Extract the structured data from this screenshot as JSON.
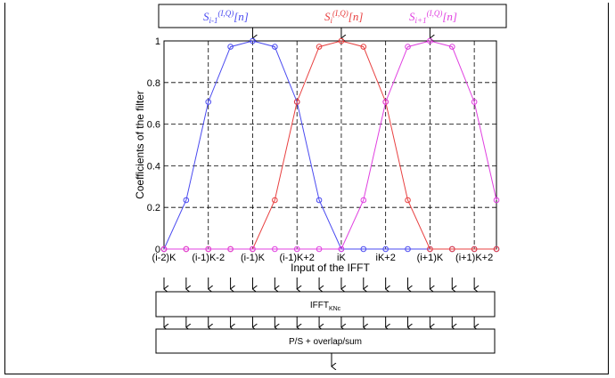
{
  "top_box": {
    "signals": [
      {
        "base": "S",
        "sub": "i-1",
        "sup": "(I,Q)",
        "tail": "[n]",
        "color": "#4a4af0"
      },
      {
        "base": "S",
        "sub": "i",
        "sup": "(I,Q)",
        "tail": "[n]",
        "color": "#e84040"
      },
      {
        "base": "S",
        "sub": "i+1",
        "sup": "(I,Q)",
        "tail": "[n]",
        "color": "#e040e0"
      }
    ]
  },
  "chart_data": {
    "type": "line",
    "ylabel": "Coefficients of the filter",
    "xlabel": "Input of the IFFT",
    "x_tick_labels": [
      "(i-2)K",
      "(i-1)K-2",
      "(i-1)K",
      "(i-1)K+2",
      "iK",
      "iK+2",
      "(i+1)K",
      "(i+1)K+2"
    ],
    "y_tick_labels": [
      "0",
      "0.2",
      "0.4",
      "0.6",
      "0.8",
      "1"
    ],
    "xlim": [
      0,
      15
    ],
    "ylim": [
      0,
      1
    ],
    "grid": true,
    "series": [
      {
        "color": "#4a4af0",
        "x": [
          0,
          1,
          2,
          3,
          4,
          5,
          6,
          7,
          8,
          9,
          10,
          11,
          12,
          13,
          14,
          15
        ],
        "values": [
          0,
          0.235,
          0.707,
          0.972,
          1,
          0.972,
          0.707,
          0.235,
          0,
          0,
          0,
          0,
          0,
          0,
          0,
          0
        ]
      },
      {
        "color": "#e84040",
        "x": [
          0,
          1,
          2,
          3,
          4,
          5,
          6,
          7,
          8,
          9,
          10,
          11,
          12,
          13,
          14,
          15
        ],
        "values": [
          0,
          0,
          0,
          0,
          0,
          0.235,
          0.707,
          0.972,
          1,
          0.972,
          0.707,
          0.235,
          0,
          0,
          0,
          0
        ]
      },
      {
        "color": "#e040e0",
        "x": [
          0,
          1,
          2,
          3,
          4,
          5,
          6,
          7,
          8,
          9,
          10,
          11,
          12,
          13,
          14,
          15
        ],
        "values": [
          0,
          0,
          0,
          0,
          0,
          0,
          0,
          0,
          0,
          0.235,
          0.707,
          0.972,
          1,
          0.972,
          0.707,
          0.235
        ]
      }
    ]
  },
  "ifft_box": {
    "text": "IFFT",
    "sub": "KNc"
  },
  "ps_box": {
    "text": "P/S + overlap/sum"
  }
}
